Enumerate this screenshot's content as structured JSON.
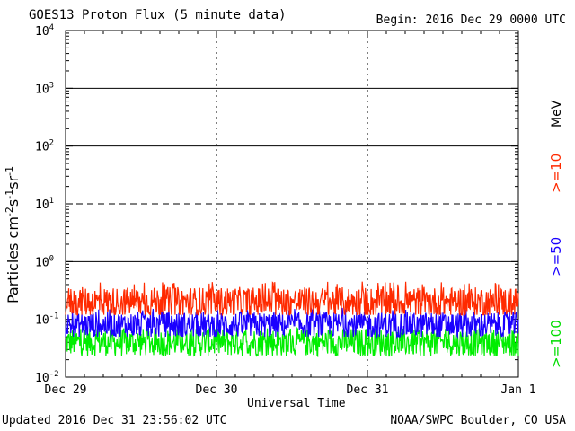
{
  "header": {
    "title": "GOES13 Proton Flux (5 minute data)",
    "begin": "Begin: 2016 Dec 29 0000 UTC"
  },
  "footer": {
    "updated": "Updated 2016 Dec 31 23:56:02 UTC",
    "credit": "NOAA/SWPC Boulder, CO USA"
  },
  "chart_data": {
    "type": "line",
    "title": "GOES13 Proton Flux (5 minute data)",
    "xlabel": "Universal Time",
    "ylabel": "Particles cm⁻²s⁻¹sr⁻¹",
    "ylabel_parts": {
      "base": "Particles cm",
      "e1": "-2",
      "s": "s",
      "e2": "-1",
      "sr": "sr",
      "e3": "-1"
    },
    "yscale": "log",
    "ylim": [
      0.01,
      10000
    ],
    "y_ticks": [
      {
        "base": "10",
        "exp": "-2",
        "value": 0.01
      },
      {
        "base": "10",
        "exp": "-1",
        "value": 0.1
      },
      {
        "base": "10",
        "exp": "0",
        "value": 1
      },
      {
        "base": "10",
        "exp": "1",
        "value": 10
      },
      {
        "base": "10",
        "exp": "2",
        "value": 100
      },
      {
        "base": "10",
        "exp": "3",
        "value": 1000
      },
      {
        "base": "10",
        "exp": "4",
        "value": 10000
      }
    ],
    "x_ticks": [
      "Dec 29",
      "Dec 30",
      "Dec 31",
      "Jan 1"
    ],
    "xlim_days": [
      0,
      3
    ],
    "threshold_lines": [
      {
        "value": 10,
        "style": "dashed"
      },
      {
        "value": 1,
        "style": "solid"
      },
      {
        "value": 100,
        "style": "solid"
      },
      {
        "value": 1000,
        "style": "solid"
      }
    ],
    "series": [
      {
        "name": ">=10 MeV",
        "color": "#ff2a00",
        "typical": 0.2,
        "range": [
          0.12,
          0.45
        ]
      },
      {
        "name": ">=50",
        "color": "#1a00ff",
        "typical": 0.08,
        "range": [
          0.05,
          0.16
        ]
      },
      {
        "name": ">=100",
        "color": "#00ee00",
        "typical": 0.04,
        "range": [
          0.02,
          0.07
        ]
      }
    ],
    "legend": {
      "position": "right",
      "unit": "MeV",
      "labels": [
        ">=10",
        ">=50",
        ">=100"
      ]
    },
    "grid": false
  }
}
